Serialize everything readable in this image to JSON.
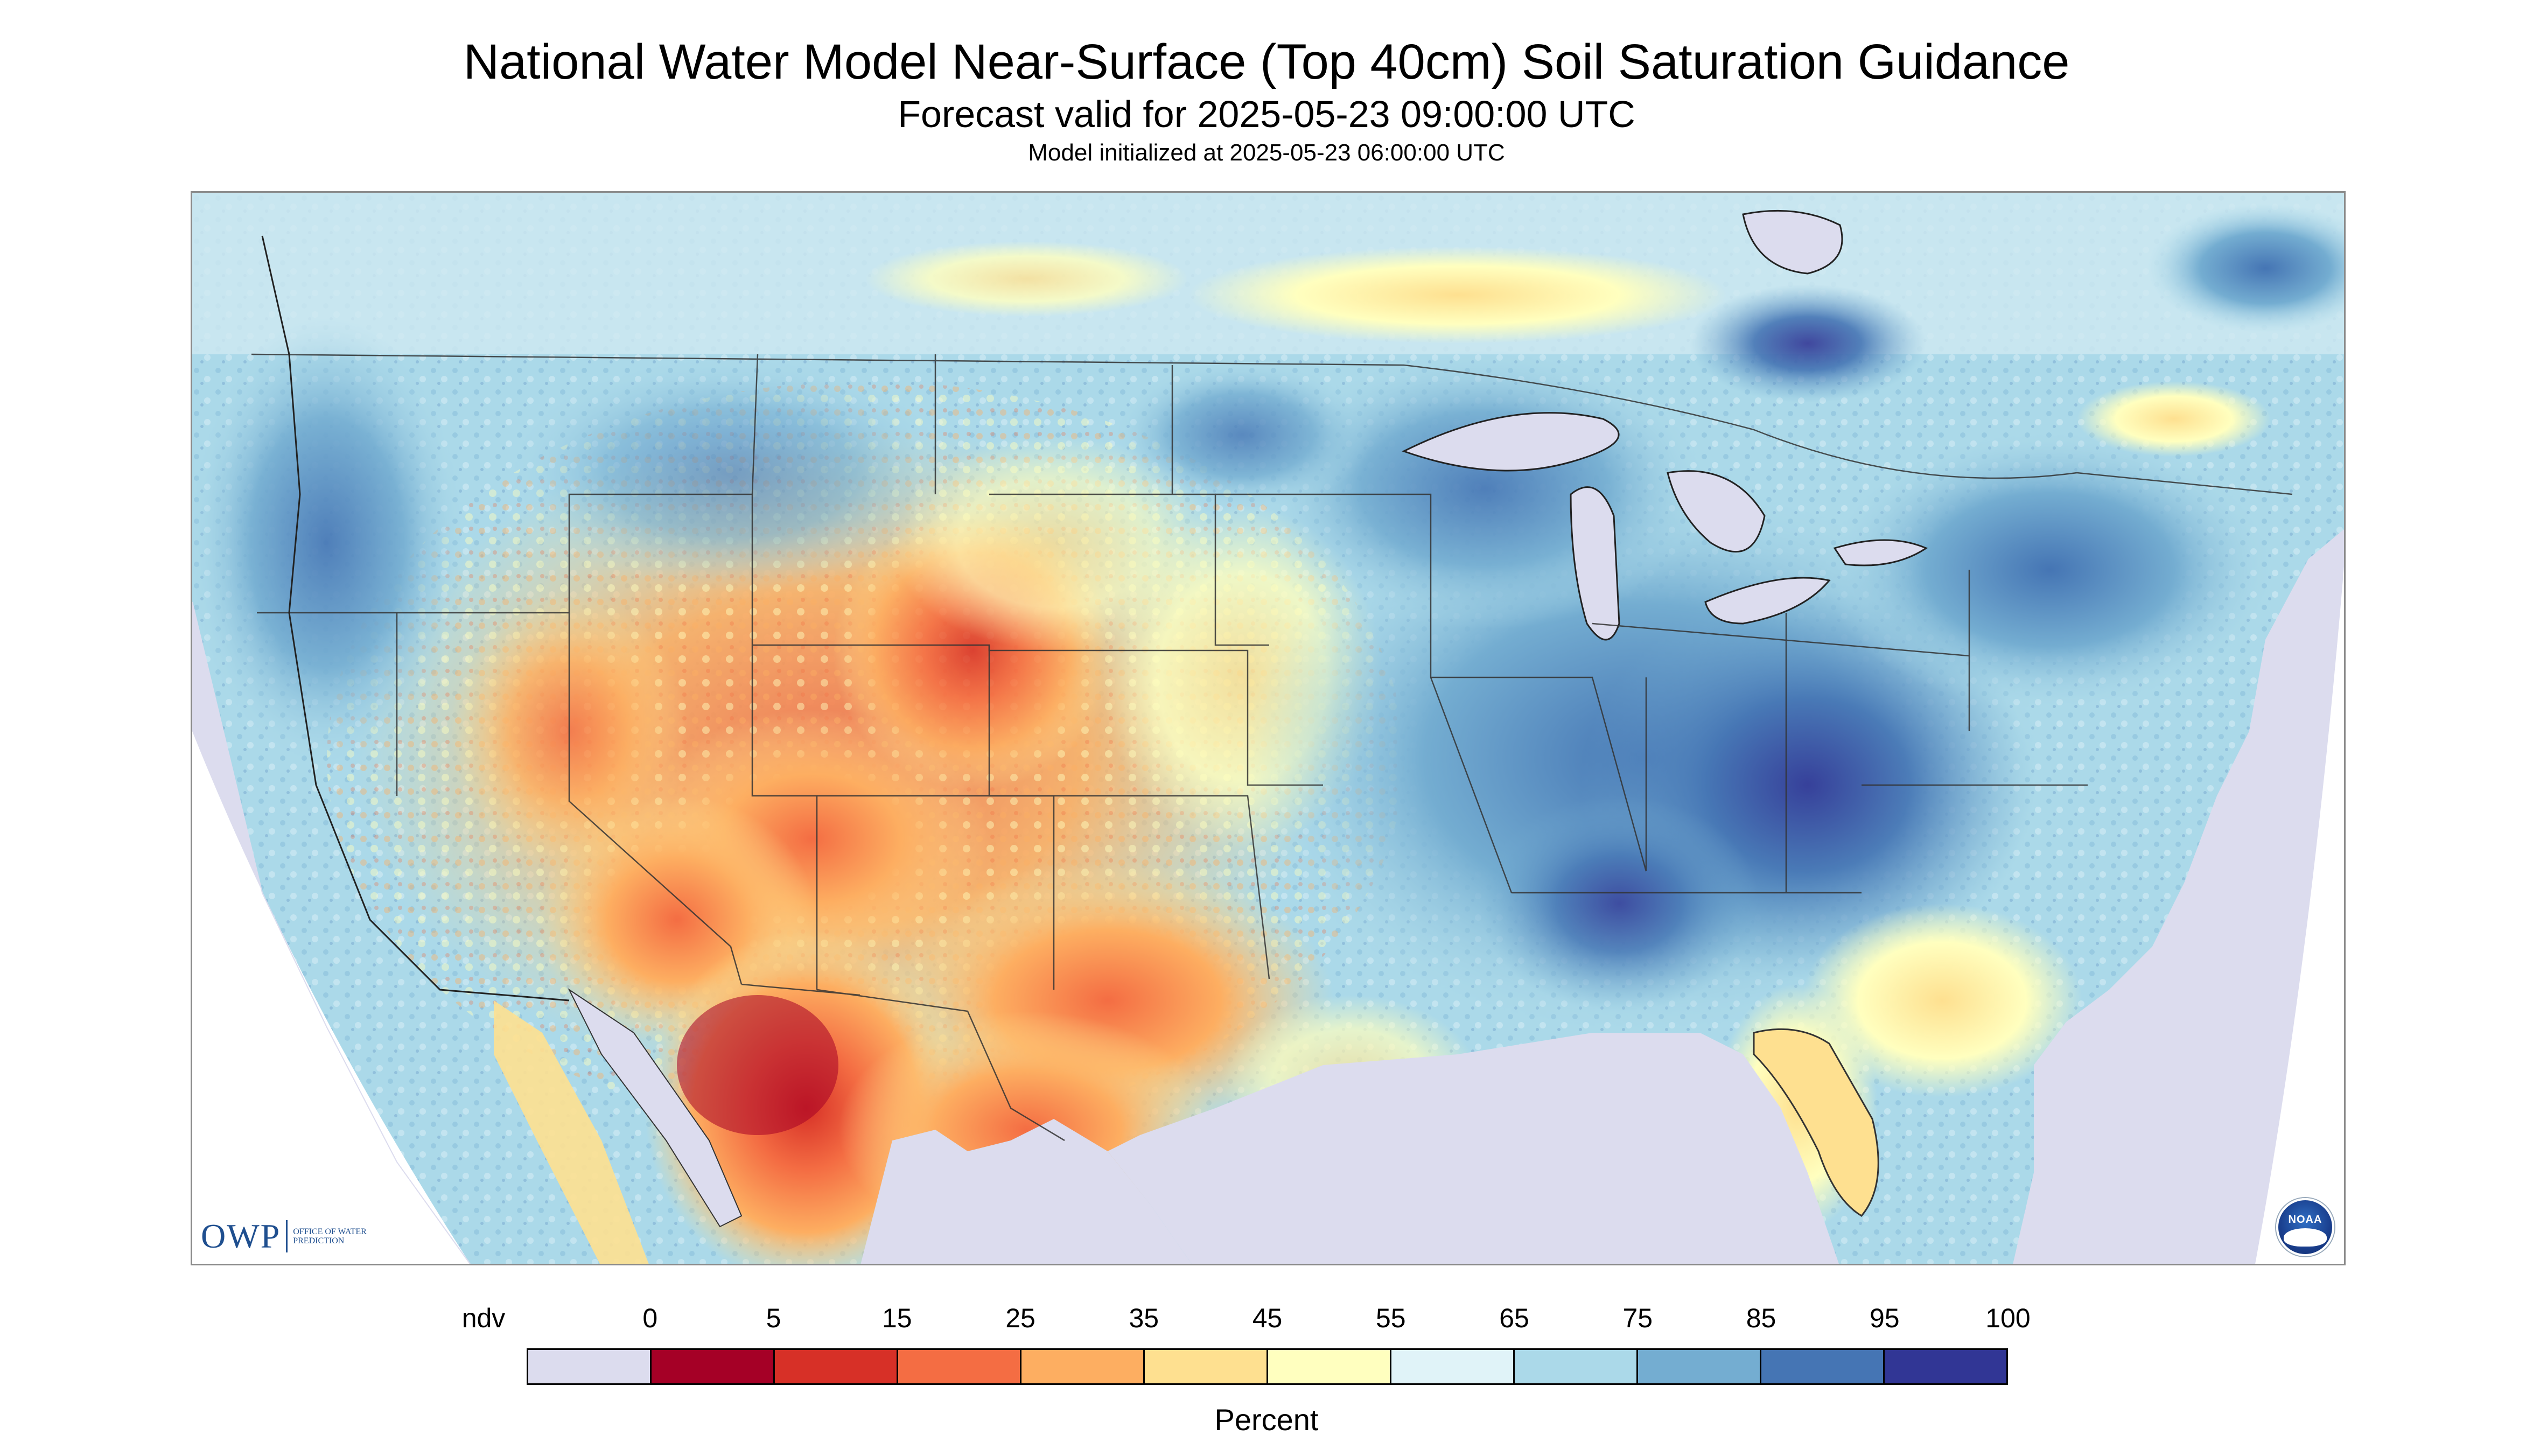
{
  "title": "National Water Model Near-Surface (Top 40cm) Soil Saturation Guidance",
  "subtitle": "Forecast valid for 2025-05-23 09:00:00 UTC",
  "init_line": "Model initialized at 2025-05-23 06:00:00 UTC",
  "logos": {
    "owp_mark": "OWP",
    "owp_name": "OFFICE OF WATER PREDICTION",
    "noaa": "NOAA"
  },
  "legend": {
    "label": "Percent",
    "ticks": [
      "ndv",
      "0",
      "5",
      "15",
      "25",
      "35",
      "45",
      "55",
      "65",
      "75",
      "85",
      "95",
      "100"
    ],
    "colors": [
      "#dcdcee",
      "#a50026",
      "#d73027",
      "#f46d43",
      "#fdae61",
      "#fee090",
      "#ffffbf",
      "#e0f3f8",
      "#abd9e9",
      "#74add1",
      "#4575b4",
      "#313695"
    ]
  },
  "map": {
    "no_data_color": "#dcdcee",
    "water_color": "#dcdcee",
    "border_color": "#333333"
  }
}
